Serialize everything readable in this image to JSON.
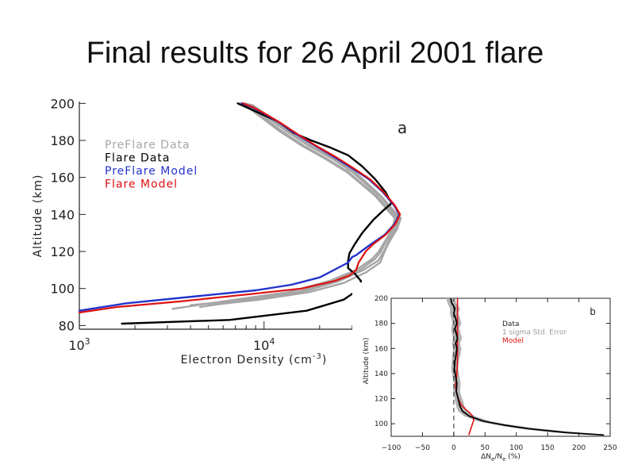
{
  "slide": {
    "title": "Final results for 26 April 2001 flare"
  },
  "colors": {
    "preflare_data": "#a6a6a6",
    "flare_data": "#000000",
    "preflare_model": "#2233cc",
    "flare_model": "#dd1111",
    "error_band": "#b3b3b3"
  },
  "chart_data": [
    {
      "type": "line",
      "panel_label": "a",
      "xlabel": "Electron Density (cm",
      "xlabel_exp": "-3",
      "xlabel_tail": ")",
      "ylabel": "Altitude (km)",
      "xscale": "log",
      "xlim": [
        1000,
        80000
      ],
      "ylim": [
        78,
        201
      ],
      "xticks": [
        {
          "value": 1000,
          "base": "10",
          "exp": "3"
        },
        {
          "value": 10000,
          "base": "10",
          "exp": "4"
        }
      ],
      "yticks": [
        80,
        100,
        120,
        140,
        160,
        180,
        200
      ],
      "legend": {
        "placement": "top-left"
      },
      "series": [
        {
          "name": "PreFlare Data",
          "role": "preflare_data",
          "tracks": [
            {
              "x": [
                7500,
                8000,
                9800,
                12500,
                16500,
                22000,
                28500,
                34500,
                41000,
                47000,
                52500,
                50500,
                47500,
                45000,
                43000,
                40000,
                33000,
                24000,
                15000,
                8000,
                4000
              ],
              "y": [
                200,
                199,
                193,
                185,
                177,
                170,
                163,
                156,
                150,
                143,
                138,
                132,
                128,
                124,
                120,
                116,
                110,
                104,
                98,
                94,
                91
              ]
            },
            {
              "x": [
                7600,
                8400,
                10200,
                13200,
                17500,
                23500,
                30000,
                36000,
                42500,
                48500,
                54000,
                51500,
                48500,
                46500,
                44500,
                41500,
                34500,
                25500,
                16000,
                8500,
                4500
              ],
              "y": [
                200,
                199,
                193,
                185,
                177,
                170,
                163,
                156,
                150,
                143,
                138,
                132,
                128,
                124,
                120,
                115,
                110,
                104,
                98,
                94,
                90
              ]
            },
            {
              "x": [
                7400,
                7900,
                9500,
                12100,
                16100,
                21500,
                28000,
                34000,
                40000,
                46000,
                51000,
                49500,
                46800,
                44200,
                41800,
                38500,
                31500,
                22500,
                13500,
                7000,
                3200
              ],
              "y": [
                200,
                199,
                193,
                185,
                177,
                170,
                163,
                156,
                150,
                143,
                138,
                132,
                128,
                124,
                120,
                116,
                110,
                104,
                98,
                94,
                89
              ]
            },
            {
              "x": [
                7800,
                8700,
                10600,
                13600,
                18000,
                24000,
                31000,
                37000,
                43000,
                49500,
                55000,
                52500,
                49500,
                47000,
                45000,
                42500,
                36000,
                27000,
                17500,
                9500,
                5000
              ],
              "y": [
                200,
                199,
                193,
                185,
                177,
                170,
                163,
                156,
                150,
                143,
                138,
                132,
                128,
                124,
                120,
                114,
                109,
                103,
                98,
                94,
                91
              ]
            }
          ]
        },
        {
          "name": "Flare Data",
          "role": "flare_data",
          "tracks": [
            {
              "x": [
                7200,
                8000,
                9800,
                12000,
                14500,
                18000,
                23000,
                28500,
                34000,
                40000,
                45500,
                49000,
                44000,
                39000,
                34000,
                31000,
                29000,
                28500,
                28500,
                31000,
                33500,
                33000,
                27000,
                17000,
                6500,
                1700
              ],
              "y": [
                200,
                198,
                194,
                190,
                184,
                180,
                176,
                172,
                166,
                159,
                152,
                146,
                142,
                137,
                130,
                124,
                119,
                115,
                111,
                108,
                104,
                100,
                94,
                88,
                83,
                81
              ]
            }
          ]
        },
        {
          "name": "PreFlare Model",
          "role": "preflare_model",
          "tracks": [
            {
              "x": [
                7600,
                8600,
                10200,
                12400,
                15200,
                19000,
                24000,
                30000,
                37000,
                44000,
                50500,
                54000,
                51000,
                45000,
                38000,
                33500,
                31500,
                30000,
                28500,
                25000,
                20000,
                14000,
                9000,
                4500,
                1800,
                1000
              ],
              "y": [
                200,
                198,
                194,
                189,
                183,
                177,
                171,
                165,
                159,
                152,
                145,
                140,
                135,
                129,
                124,
                120,
                118,
                117,
                114,
                111,
                106,
                102,
                99,
                96,
                92,
                88
              ]
            }
          ]
        },
        {
          "name": "Flare Model",
          "role": "flare_model",
          "tracks": [
            {
              "x": [
                7700,
                8700,
                10300,
                12500,
                15400,
                19200,
                24500,
                30500,
                37500,
                44500,
                51000,
                54500,
                51500,
                45500,
                39000,
                35500,
                34000,
                32500,
                31500,
                29000,
                24000,
                16000,
                8500,
                3500,
                1600,
                1000
              ],
              "y": [
                200,
                198,
                194,
                189,
                183,
                177,
                171,
                165,
                159,
                152,
                145,
                140,
                135,
                129,
                124,
                120,
                117,
                114,
                110,
                107,
                104,
                100,
                97,
                93,
                90,
                87
              ]
            }
          ]
        }
      ]
    },
    {
      "type": "line",
      "panel_label": "b",
      "xlabel": "ΔN",
      "xlabel_sub1": "e",
      "xlabel_mid": "/N",
      "xlabel_sub2": "e",
      "xlabel_tail": "  (%)",
      "ylabel": "Altitude (km)",
      "xlim": [
        -100,
        250
      ],
      "ylim": [
        90,
        200
      ],
      "xticks": [
        -100,
        -50,
        0,
        50,
        100,
        150,
        200,
        250
      ],
      "yticks": [
        100,
        120,
        140,
        160,
        180,
        200
      ],
      "legend": {
        "placement": "top-right"
      },
      "series": [
        {
          "name": "Data",
          "role": "flare_data",
          "x": [
            -5,
            -3,
            2,
            0,
            3,
            5,
            2,
            4,
            6,
            3,
            5,
            4,
            2,
            1,
            3,
            5,
            4,
            6,
            8,
            10,
            14,
            25,
            48,
            80,
            120,
            180,
            240
          ],
          "y": [
            200,
            196,
            192,
            188,
            184,
            180,
            176,
            172,
            168,
            164,
            160,
            156,
            150,
            144,
            138,
            132,
            126,
            122,
            118,
            114,
            110,
            106,
            102,
            99,
            96,
            93,
            91
          ]
        },
        {
          "name": "1 sigma Std. Error",
          "role": "error_band",
          "lower": [
            -12,
            -10,
            -6,
            -6,
            -4,
            -2,
            -4,
            -3,
            -1,
            -3,
            -1,
            -2,
            -3,
            -4,
            -2,
            0,
            -1,
            1,
            2,
            4,
            7,
            17,
            38,
            68,
            105,
            160,
            220
          ],
          "upper": [
            2,
            4,
            10,
            7,
            10,
            12,
            9,
            11,
            13,
            10,
            12,
            11,
            8,
            7,
            9,
            11,
            10,
            12,
            15,
            17,
            22,
            34,
            58,
            93,
            138,
            200,
            250
          ]
        },
        {
          "name": "Model",
          "role": "flare_model",
          "x": [
            6,
            6,
            6,
            6,
            6,
            6,
            5,
            4,
            3,
            4,
            6,
            9,
            12,
            16,
            20,
            25,
            30,
            32,
            30,
            28,
            26,
            24
          ],
          "y": [
            200,
            190,
            180,
            170,
            160,
            150,
            140,
            135,
            130,
            126,
            122,
            118,
            115,
            113,
            111,
            109,
            106,
            103,
            100,
            97,
            94,
            91
          ]
        },
        {
          "name": "zero line",
          "role": "zero_line",
          "x": [
            0,
            0
          ],
          "y": [
            90,
            200
          ]
        }
      ]
    }
  ]
}
